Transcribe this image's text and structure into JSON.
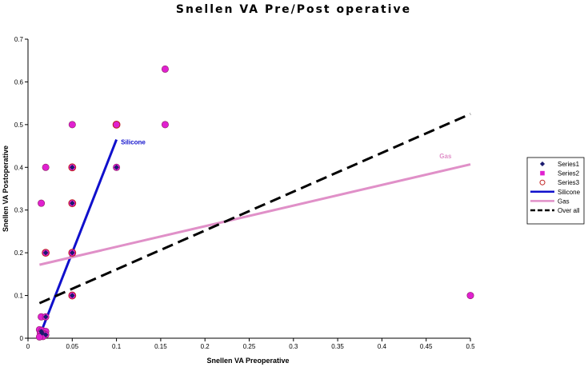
{
  "chart_data": {
    "type": "scatter",
    "title": "Snellen VA Pre/Post operative",
    "xlabel": "Snellen VA Preoperative",
    "ylabel": "Snellen VA Postoperative",
    "xlim": [
      0,
      0.5
    ],
    "ylim": [
      0,
      0.7
    ],
    "x_ticks": [
      "0",
      "0.05",
      "0.1",
      "0.15",
      "0.2",
      "0.25",
      "0.3",
      "0.35",
      "0.4",
      "0.45",
      "0.5"
    ],
    "y_ticks": [
      "0",
      "0.1",
      "0.2",
      "0.3",
      "0.4",
      "0.5",
      "0.6",
      "0.7"
    ],
    "grid": false,
    "legend_position": "right",
    "series": [
      {
        "name": "Series1",
        "marker": "diamond",
        "color": "#1a1a6e",
        "points": [
          [
            0.05,
            0.4
          ],
          [
            0.1,
            0.4
          ],
          [
            0.05,
            0.316
          ],
          [
            0.02,
            0.2
          ],
          [
            0.05,
            0.2
          ],
          [
            0.05,
            0.1
          ],
          [
            0.02,
            0.05
          ],
          [
            0.015,
            0.016
          ],
          [
            0.016,
            0.012
          ],
          [
            0.02,
            0.008
          ]
        ]
      },
      {
        "name": "Series2",
        "marker": "circle",
        "color": "#e020d0",
        "points": [
          [
            0.155,
            0.63
          ],
          [
            0.05,
            0.5
          ],
          [
            0.1,
            0.5
          ],
          [
            0.155,
            0.5
          ],
          [
            0.02,
            0.4
          ],
          [
            0.05,
            0.4
          ],
          [
            0.1,
            0.4
          ],
          [
            0.015,
            0.316
          ],
          [
            0.05,
            0.316
          ],
          [
            0.02,
            0.2
          ],
          [
            0.05,
            0.2
          ],
          [
            0.05,
            0.1
          ],
          [
            0.5,
            0.1
          ],
          [
            0.015,
            0.05
          ],
          [
            0.02,
            0.05
          ],
          [
            0.013,
            0.02
          ],
          [
            0.016,
            0.018
          ],
          [
            0.02,
            0.016
          ],
          [
            0.014,
            0.012
          ],
          [
            0.018,
            0.01
          ],
          [
            0.02,
            0.008
          ],
          [
            0.015,
            0.006
          ],
          [
            0.017,
            0.004
          ],
          [
            0.013,
            0.003
          ]
        ]
      },
      {
        "name": "Series3",
        "marker": "open-circle",
        "color": "#c02020",
        "points": [
          [
            0.02,
            0.2
          ],
          [
            0.05,
            0.4
          ],
          [
            0.05,
            0.316
          ],
          [
            0.05,
            0.2
          ],
          [
            0.05,
            0.1
          ],
          [
            0.1,
            0.5
          ]
        ]
      }
    ],
    "lines": [
      {
        "name": "Silicone",
        "color": "#1010cc",
        "style": "solid",
        "width": 3,
        "x": [
          0.013,
          0.1
        ],
        "y": [
          0.005,
          0.465
        ]
      },
      {
        "name": "Gas",
        "color": "#e090c8",
        "style": "solid",
        "width": 3,
        "x": [
          0.013,
          0.5
        ],
        "y": [
          0.172,
          0.407
        ]
      },
      {
        "name": "Over all",
        "color": "#000000",
        "style": "dashed",
        "width": 3,
        "x": [
          0.013,
          0.5
        ],
        "y": [
          0.082,
          0.525
        ]
      }
    ],
    "annotations": [
      {
        "text": "Silicone",
        "color": "#1010cc",
        "x": 0.105,
        "y": 0.465
      },
      {
        "text": "Gas",
        "color": "#e090c8",
        "x": 0.465,
        "y": 0.432
      }
    ]
  }
}
